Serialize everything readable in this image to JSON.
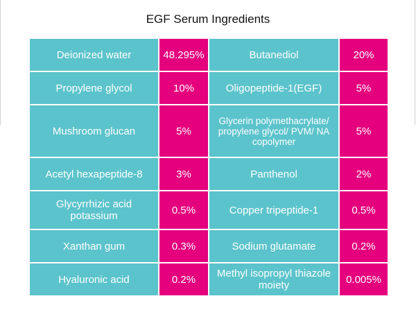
{
  "title": "EGF Serum Ingredients",
  "table": {
    "rows": [
      [
        "Deionized water",
        "48.295%",
        "Butanediol",
        "20%"
      ],
      [
        "Propylene glycol",
        "10%",
        "Oligopeptide-1(EGF)",
        "5%"
      ],
      [
        "Mushroom glucan",
        "5%",
        "Glycerin polymethacrylate/ propylene glycol/ PVM/ NA copolymer",
        "5%"
      ],
      [
        "Acetyl hexapeptide-8",
        "3%",
        "Panthenol",
        "2%"
      ],
      [
        "Glycyrrhizic acid potassium",
        "0.5%",
        "Copper tripeptide-1",
        "0.5%"
      ],
      [
        "Xanthan gum",
        "0.3%",
        "Sodium glutamate",
        "0.2%"
      ],
      [
        "Hyaluronic acid",
        "0.2%",
        "Methyl isopropyl thiazole moiety",
        "0.005%"
      ]
    ]
  }
}
